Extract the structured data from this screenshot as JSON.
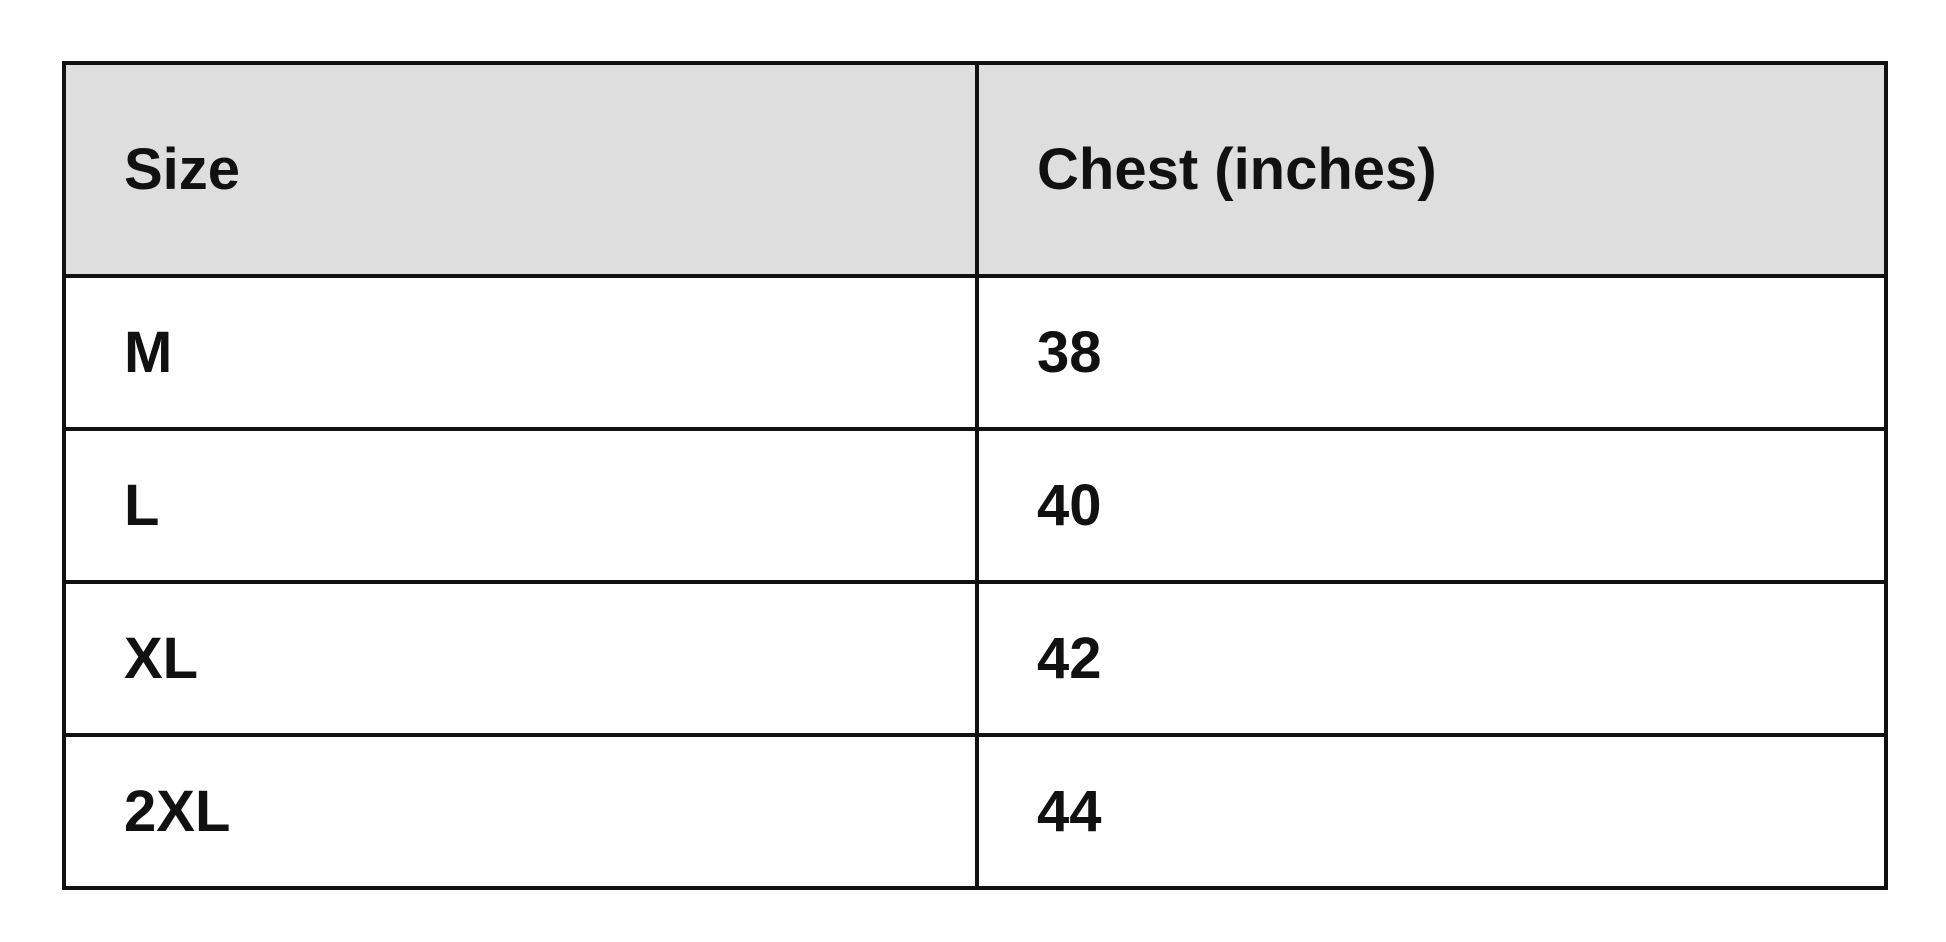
{
  "table": {
    "header": [
      "Size",
      "Chest (inches)"
    ],
    "rows": [
      [
        "M",
        38
      ],
      [
        "L",
        40
      ],
      [
        "XL",
        42
      ],
      [
        "2XL",
        44
      ]
    ]
  }
}
